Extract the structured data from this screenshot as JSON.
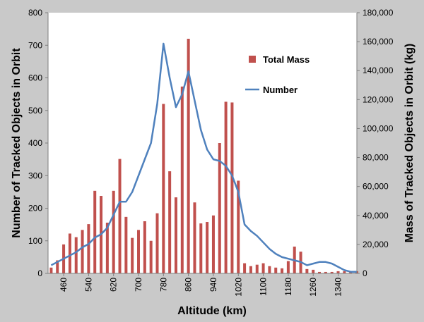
{
  "chart_data": {
    "type": "bar",
    "xlabel": "Altitude (km)",
    "ylabel_left": "Number of Tracked Objects in Orbit",
    "ylabel_right": "Mass of Tracked Objects in Orbit (kg)",
    "ylim_left": [
      0,
      800
    ],
    "ylim_right": [
      0,
      180000
    ],
    "yticks_left": [
      "0",
      "100",
      "200",
      "300",
      "400",
      "500",
      "600",
      "700",
      "800"
    ],
    "yticks_right": [
      "0",
      "20,000",
      "40,000",
      "60,000",
      "80,000",
      "100,000",
      "120,000",
      "140,000",
      "160,000",
      "180,000"
    ],
    "xticks": [
      "460",
      "540",
      "620",
      "700",
      "780",
      "860",
      "940",
      "1020",
      "1100",
      "1180",
      "1260",
      "1340"
    ],
    "x_range": [
      410,
      1400
    ],
    "grid": false,
    "legend_position": "top-right",
    "colors": {
      "bars": "#c0504d",
      "line": "#4f81bd",
      "background": "#c9c9c9",
      "plot_background": "#ffffff"
    },
    "series": [
      {
        "name": "Total Mass",
        "type": "bar",
        "axis": "right",
        "x": [
          420,
          440,
          460,
          480,
          500,
          520,
          540,
          560,
          580,
          600,
          620,
          640,
          660,
          680,
          700,
          720,
          740,
          760,
          780,
          800,
          820,
          840,
          860,
          880,
          900,
          920,
          940,
          960,
          980,
          1000,
          1020,
          1040,
          1060,
          1080,
          1100,
          1120,
          1140,
          1160,
          1180,
          1200,
          1220,
          1240,
          1260,
          1280,
          1300,
          1320,
          1340,
          1360,
          1380,
          1400
        ],
        "values": [
          4000,
          9000,
          20000,
          27500,
          25000,
          30000,
          34000,
          57000,
          53500,
          35000,
          57000,
          79000,
          39000,
          24500,
          30000,
          36000,
          22500,
          41500,
          117000,
          70500,
          52500,
          129000,
          162000,
          49000,
          34500,
          35500,
          40000,
          90000,
          118500,
          118000,
          64000,
          7000,
          5000,
          6000,
          7000,
          5000,
          4000,
          3500,
          8500,
          18500,
          15000,
          3000,
          2500,
          1000,
          1000,
          1000,
          1500,
          1500,
          1000,
          1500
        ]
      },
      {
        "name": "Number",
        "type": "line",
        "axis": "left",
        "x": [
          420,
          440,
          460,
          480,
          500,
          520,
          540,
          560,
          580,
          600,
          620,
          640,
          660,
          680,
          700,
          720,
          740,
          760,
          780,
          800,
          820,
          840,
          860,
          880,
          900,
          920,
          940,
          960,
          980,
          1000,
          1020,
          1040,
          1060,
          1080,
          1100,
          1120,
          1140,
          1160,
          1180,
          1200,
          1220,
          1240,
          1260,
          1280,
          1300,
          1320,
          1340,
          1360,
          1380,
          1400
        ],
        "values": [
          25,
          35,
          45,
          55,
          65,
          80,
          90,
          110,
          120,
          140,
          180,
          220,
          220,
          250,
          300,
          350,
          400,
          520,
          705,
          600,
          510,
          550,
          620,
          530,
          440,
          380,
          350,
          345,
          330,
          300,
          250,
          150,
          130,
          115,
          95,
          75,
          60,
          50,
          45,
          40,
          35,
          25,
          30,
          35,
          35,
          30,
          20,
          10,
          5,
          5
        ]
      }
    ]
  }
}
